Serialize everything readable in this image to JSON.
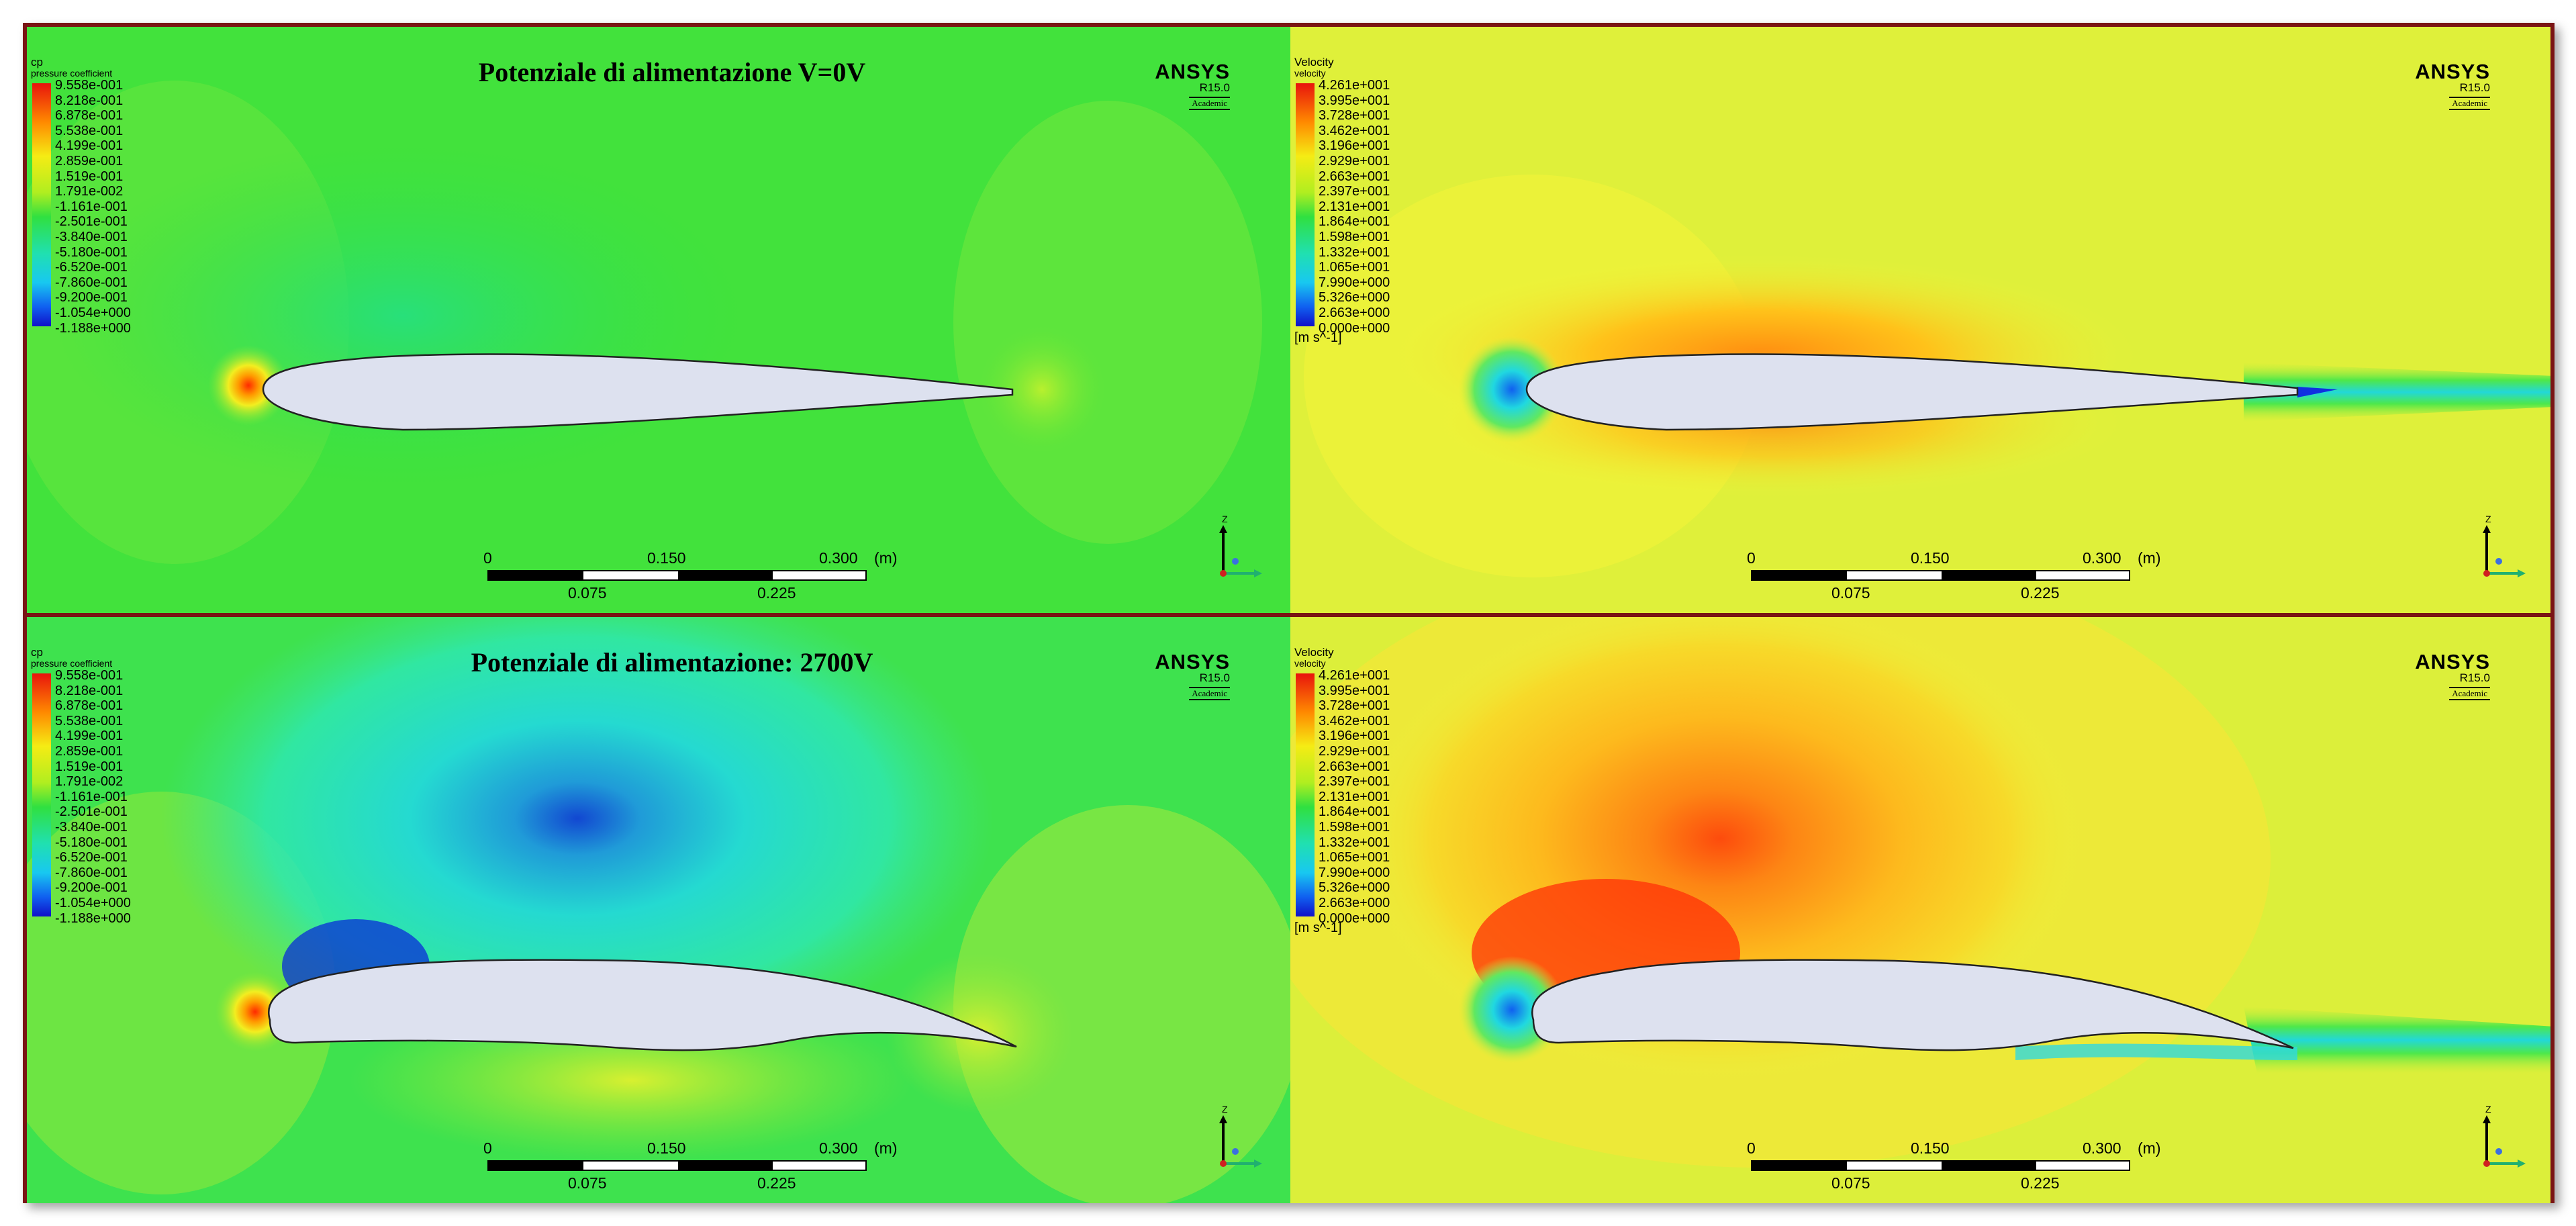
{
  "panels": {
    "top_left": {
      "title": "Potenziale di alimentazione V=0V",
      "legend_title": "cp",
      "legend_subtitle": "pressure coefficient",
      "legend_ticks": [
        "9.558e-001",
        "8.218e-001",
        "6.878e-001",
        "5.538e-001",
        "4.199e-001",
        "2.859e-001",
        "1.519e-001",
        "1.791e-002",
        "-1.161e-001",
        "-2.501e-001",
        "-3.840e-001",
        "-5.180e-001",
        "-6.520e-001",
        "-7.860e-001",
        "-9.200e-001",
        "-1.054e+000",
        "-1.188e+000"
      ]
    },
    "top_right": {
      "legend_title": "Velocity",
      "legend_subtitle": "velocity",
      "legend_ticks": [
        "4.261e+001",
        "3.995e+001",
        "3.728e+001",
        "3.462e+001",
        "3.196e+001",
        "2.929e+001",
        "2.663e+001",
        "2.397e+001",
        "2.131e+001",
        "1.864e+001",
        "1.598e+001",
        "1.332e+001",
        "1.065e+001",
        "7.990e+000",
        "5.326e+000",
        "2.663e+000",
        "0.000e+000"
      ],
      "legend_unit": "[m s^-1]"
    },
    "bottom_left": {
      "title": "Potenziale di alimentazione: 2700V",
      "legend_title": "cp",
      "legend_subtitle": "pressure coefficient",
      "legend_ticks": [
        "9.558e-001",
        "8.218e-001",
        "6.878e-001",
        "5.538e-001",
        "4.199e-001",
        "2.859e-001",
        "1.519e-001",
        "1.791e-002",
        "-1.161e-001",
        "-2.501e-001",
        "-3.840e-001",
        "-5.180e-001",
        "-6.520e-001",
        "-7.860e-001",
        "-9.200e-001",
        "-1.054e+000",
        "-1.188e+000"
      ]
    },
    "bottom_right": {
      "legend_title": "Velocity",
      "legend_subtitle": "velocity",
      "legend_ticks": [
        "4.261e+001",
        "3.995e+001",
        "3.728e+001",
        "3.462e+001",
        "3.196e+001",
        "2.929e+001",
        "2.663e+001",
        "2.397e+001",
        "2.131e+001",
        "1.864e+001",
        "1.598e+001",
        "1.332e+001",
        "1.065e+001",
        "7.990e+000",
        "5.326e+000",
        "2.663e+000",
        "0.000e+000"
      ],
      "legend_unit": "[m s^-1]"
    }
  },
  "logo": {
    "name": "ANSYS",
    "version": "R15.0",
    "edition": "Academic"
  },
  "scale_bar": {
    "top_labels": [
      "0",
      "0.150",
      "0.300"
    ],
    "unit": "(m)",
    "bottom_labels": [
      "0.075",
      "0.225"
    ]
  },
  "axis_triad": {
    "vertical": "Z",
    "horizontal": "Y"
  },
  "colors": {
    "frame": "#7a1414",
    "field_green": "#3ee23a",
    "field_yellow": "#e8f53a",
    "airfoil": "#dde1ef"
  }
}
